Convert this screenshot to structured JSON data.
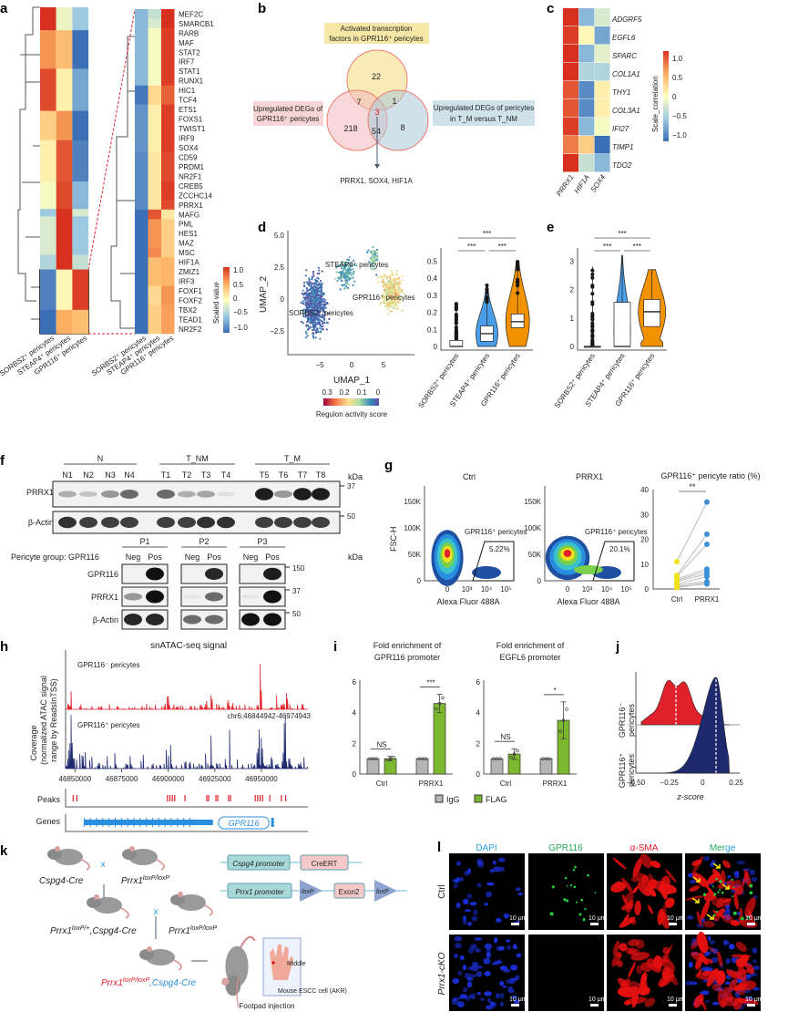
{
  "panel_labels": [
    "a",
    "b",
    "c",
    "d",
    "e",
    "f",
    "g",
    "h",
    "i",
    "j",
    "k",
    "l"
  ],
  "panel_a": {
    "overview_rows": [
      {
        "count": 25,
        "values": [
          1.0,
          -0.1,
          -0.5
        ]
      },
      {
        "count": 42,
        "values": [
          0.6,
          0.4,
          -1.0
        ]
      },
      {
        "count": 46,
        "values": [
          0.9,
          0.1,
          -0.7
        ]
      },
      {
        "count": 32,
        "values": [
          0.3,
          0.6,
          -1.0
        ]
      },
      {
        "count": 45,
        "values": [
          0.1,
          0.85,
          -0.9
        ]
      },
      {
        "count": 30,
        "values": [
          -0.05,
          0.9,
          -0.6
        ]
      },
      {
        "count": 8,
        "values": [
          -0.5,
          1.0,
          -0.2
        ]
      },
      {
        "count": 42,
        "values": [
          -0.2,
          1.0,
          -0.5
        ]
      },
      {
        "count": 16,
        "values": [
          -0.4,
          1.0,
          -0.3
        ]
      },
      {
        "count": 44,
        "values": [
          -0.9,
          0.05,
          0.95
        ]
      },
      {
        "count": 26,
        "values": [
          -1.0,
          0.5,
          0.4
        ]
      }
    ],
    "genes": [
      "MEF2C",
      "SMARCB1",
      "RARB",
      "MAF",
      "STAT2",
      "IRF7",
      "STAT1",
      "RUNX1",
      "HIC1",
      "TCF4",
      "ETS1",
      "FOXS1",
      "TWIST1",
      "IRF9",
      "SOX4",
      "CD59",
      "PRDM1",
      "NR2F1",
      "CREB5",
      "ZCCHC14",
      "PRRX1",
      "MAFG",
      "PML",
      "HES1",
      "MAZ",
      "MSC",
      "HIF1A",
      "ZMIZ1",
      "IRF3",
      "FOXF1",
      "FOXF2",
      "TBX2",
      "TEAD1",
      "NR2F2"
    ],
    "gene_values": [
      [
        -0.6,
        -0.3,
        1.0
      ],
      [
        -0.6,
        -0.2,
        1.0
      ],
      [
        -0.6,
        -0.05,
        0.95
      ],
      [
        -0.6,
        -0.05,
        0.95
      ],
      [
        -0.6,
        -0.05,
        0.95
      ],
      [
        -0.6,
        -0.05,
        0.95
      ],
      [
        -0.6,
        -0.05,
        0.95
      ],
      [
        -0.6,
        -0.05,
        0.95
      ],
      [
        -0.95,
        0.25,
        0.8
      ],
      [
        -0.95,
        0.25,
        0.8
      ],
      [
        -0.8,
        0.1,
        0.95
      ],
      [
        -0.8,
        0.1,
        0.95
      ],
      [
        -0.8,
        0.1,
        0.95
      ],
      [
        -0.8,
        0.1,
        0.95
      ],
      [
        -0.8,
        0.1,
        0.95
      ],
      [
        -0.85,
        0.15,
        0.9
      ],
      [
        -0.85,
        0.15,
        0.9
      ],
      [
        -0.85,
        0.15,
        0.9
      ],
      [
        -0.85,
        0.15,
        0.95
      ],
      [
        -0.85,
        0.15,
        0.95
      ],
      [
        -0.85,
        0.15,
        0.9
      ],
      [
        -1.0,
        0.85,
        0.15
      ],
      [
        -1.0,
        0.6,
        0.3
      ],
      [
        -1.0,
        0.6,
        0.3
      ],
      [
        -1.0,
        0.6,
        0.3
      ],
      [
        -1.0,
        0.65,
        0.3
      ],
      [
        -1.0,
        0.4,
        0.45
      ],
      [
        -1.0,
        0.4,
        0.45
      ],
      [
        -1.0,
        0.4,
        0.45
      ],
      [
        -1.0,
        0.25,
        0.6
      ],
      [
        -1.0,
        0.25,
        0.6
      ],
      [
        -1.0,
        0.3,
        0.55
      ],
      [
        -1.0,
        0.3,
        0.55
      ],
      [
        -1.0,
        0.3,
        0.55
      ]
    ],
    "columns": [
      "SORBS2⁺ pericytes",
      "STEAP4⁺ pericytes",
      "GPR116⁺ pericytes"
    ],
    "colorbar_title": "Scaled value",
    "colorbar_ticks": [
      "1.0",
      "0.5",
      "0",
      "−0.5",
      "−1.0"
    ]
  },
  "panel_b": {
    "set_top": "Activated transcription factors in GPR116⁺ pericytes",
    "set_top_lines": [
      "Activated transcription",
      "factors in GPR116⁺ pericytes"
    ],
    "set_left_lines": [
      "Upregulated DEGs of",
      "GPR116⁺ pericytes"
    ],
    "set_right_lines": [
      "Upregulated DEGs of pericytes",
      "in T_M versus T_NM"
    ],
    "counts": {
      "top_only": "22",
      "top_left": "7",
      "top_right": "1",
      "all": "3",
      "left_only": "218",
      "left_right": "54",
      "right_only": "8"
    },
    "result": "PRRX1, SOX4, HIF1A"
  },
  "panel_c": {
    "genes": [
      "ADGRF5",
      "EGFL6",
      "SPARC",
      "COL1A1",
      "THY1",
      "COL3A1",
      "IFI27",
      "TIMP1",
      "TDO2"
    ],
    "columns": [
      "PRRX1",
      "HIF1A",
      "SOX4"
    ],
    "values": [
      [
        1.0,
        -0.6,
        -0.2
      ],
      [
        0.95,
        0.05,
        -0.7
      ],
      [
        1.0,
        -0.6,
        -0.15
      ],
      [
        1.0,
        -0.4,
        -0.4
      ],
      [
        0.85,
        -0.85,
        0.1
      ],
      [
        0.85,
        -0.85,
        0.1
      ],
      [
        0.95,
        -0.6,
        -0.05
      ],
      [
        0.7,
        0.3,
        -1.0
      ],
      [
        1.0,
        -0.3,
        -0.6
      ]
    ],
    "colorbar_title": "Scale_correlation",
    "colorbar_ticks": [
      "1.0",
      "0.5",
      "0",
      "−0.5",
      "−1.0"
    ]
  },
  "panel_d": {
    "umap": {
      "xlabel": "UMAP_1",
      "ylabel": "UMAP_2",
      "xticks": [
        "−5",
        "0",
        "5"
      ],
      "yticks": [
        "5.0",
        "2.5",
        "0",
        "−2.5"
      ],
      "clusters": [
        "STEAP4⁺ pericytes",
        "GPR116⁺ pericytes",
        "SORBS2⁺ pericytes"
      ],
      "colorbar_title": "Regulon activity score",
      "colorbar_ticks": [
        "0.3",
        "0.2",
        "0.1",
        "0"
      ]
    },
    "violin": {
      "yticks": [
        "0",
        "0.1",
        "0.2",
        "0.3",
        "0.4",
        "0.5"
      ],
      "ylim": [
        0,
        0.55
      ],
      "categories": [
        "SORBS2⁺ pericytes",
        "STEAP4⁺ pericytes",
        "GPR116⁺ pericytes"
      ],
      "stats": [
        {
          "q1": 0,
          "median": 0,
          "q3": 0.035,
          "max": 0.25
        },
        {
          "q1": 0.03,
          "median": 0.075,
          "q3": 0.12,
          "max": 0.36
        },
        {
          "q1": 0.11,
          "median": 0.145,
          "q3": 0.19,
          "max": 0.5
        }
      ],
      "colors": [
        "#8fd18f",
        "#4a9ee8",
        "#f39200"
      ],
      "significance": [
        "***",
        "***",
        "***"
      ]
    }
  },
  "panel_e": {
    "yticks": [
      "0",
      "1",
      "2",
      "3"
    ],
    "ylim": [
      0,
      3.3
    ],
    "categories": [
      "SORBS2⁺ pericytes",
      "STEAP4⁺ pericytes",
      "GPR116⁺ pericytes"
    ],
    "stats": [
      {
        "q1": 0,
        "median": 0,
        "q3": 0,
        "max": 2.8
      },
      {
        "q1": 0,
        "median": 0,
        "q3": 1.55,
        "max": 3.2
      },
      {
        "q1": 0.7,
        "median": 1.22,
        "q3": 1.65,
        "max": 2.7
      }
    ],
    "colors": [
      "#222222",
      "#4a9ee8",
      "#f39200"
    ],
    "significance": [
      "***",
      "***",
      "***"
    ]
  },
  "panel_f": {
    "groups": [
      "N",
      "T_NM",
      "T_M"
    ],
    "lanes": [
      "N1",
      "N2",
      "N3",
      "N4",
      "T1",
      "T2",
      "T3",
      "T4",
      "T5",
      "T6",
      "T7",
      "T8"
    ],
    "rows": [
      {
        "label": "PRRX1",
        "kda": "37",
        "intensity": [
          0.3,
          0.2,
          0.4,
          0.6,
          0.6,
          0.3,
          0.35,
          0.08,
          0.95,
          0.4,
          0.95,
          0.95
        ]
      },
      {
        "label": "β-Actin",
        "kda": "50",
        "intensity": [
          0.85,
          0.8,
          0.8,
          0.8,
          0.8,
          0.8,
          0.85,
          0.85,
          0.8,
          0.8,
          0.8,
          0.8
        ]
      }
    ],
    "kda_label": "kDa",
    "lower": {
      "group_label": "Pericyte group: GPR116",
      "patients": [
        "P1",
        "P2",
        "P3"
      ],
      "lane_labels": [
        "Neg",
        "Pos"
      ],
      "rows": [
        {
          "label": "GPR116",
          "kda": "150",
          "intensity": [
            [
              0,
              1
            ],
            [
              0,
              0.9
            ],
            [
              0,
              0.95
            ]
          ]
        },
        {
          "label": "PRRX1",
          "kda": "37",
          "intensity": [
            [
              0.4,
              1
            ],
            [
              0.05,
              0.6
            ],
            [
              0.05,
              1
            ]
          ]
        },
        {
          "label": "β-Actin",
          "kda": "50",
          "intensity": [
            [
              0.9,
              0.9
            ],
            [
              0.6,
              0.6
            ],
            [
              1,
              1
            ]
          ]
        }
      ]
    }
  },
  "panel_g": {
    "plots": [
      {
        "title": "Ctrl",
        "gate_label": "GPR116⁺ pericytes",
        "percent": "5.22%"
      },
      {
        "title": "PRRX1",
        "gate_label": "GPR116⁺ pericytes",
        "percent": "20.1%"
      }
    ],
    "ylabel": "FSC-H",
    "xlabel": "Alexa Fluor 488A",
    "yticks": [
      "0",
      "50K",
      "100K",
      "150K"
    ],
    "xticks": [
      "0",
      "10³",
      "10⁴",
      "10⁵"
    ],
    "ratio": {
      "title": "GPR116⁺ pericyte ratio (%)",
      "yticks": [
        "0",
        "10",
        "20",
        "30",
        "40"
      ],
      "ylim": [
        0,
        40
      ],
      "categories": [
        "Ctrl",
        "PRRX1"
      ],
      "significance": "**",
      "pairs": [
        [
          11,
          35
        ],
        [
          5.5,
          22
        ],
        [
          5,
          18
        ],
        [
          4,
          8
        ],
        [
          3.5,
          7
        ],
        [
          3,
          6
        ],
        [
          2,
          5
        ],
        [
          1.5,
          3
        ],
        [
          1,
          2
        ],
        [
          0.5,
          2.5
        ]
      ],
      "colors": [
        "#f2e11d",
        "#3b8fd9"
      ]
    }
  },
  "panel_h": {
    "title": "snATAC-seq signal",
    "ylabel_lines": [
      "Coverage",
      "(normalized ATAC signal",
      "range by ReadsInTSS)"
    ],
    "tracks": [
      {
        "label": "GPR116⁻ pericytes",
        "color": "#e0202a"
      },
      {
        "label": "GPR116⁺ pericytes",
        "color": "#1f2a6e"
      }
    ],
    "region": "chr6:46844942-46974943",
    "xrange": [
      46844942,
      46974943
    ],
    "xticks": [
      "46850000",
      "46875000",
      "46900000",
      "46925000",
      "46950000"
    ],
    "peaks_label": "Peaks",
    "peaks": [
      46849000,
      46851000,
      46899600,
      46900900,
      46902200,
      46903500,
      46909000,
      46920700,
      46921700,
      46925600,
      46926600,
      46932400,
      46933400,
      46946700,
      46948000,
      46949300,
      46950600,
      46954500,
      46960700,
      46963000
    ],
    "genes_label": "Genes",
    "gene": {
      "name": "GPR116",
      "start": 46854900,
      "end": 46956200
    }
  },
  "panel_i": {
    "plots": [
      {
        "title_lines": [
          "Fold enrichment of",
          "GPR116 promoter"
        ],
        "values": {
          "IgG": [
            1,
            1
          ],
          "FLAG": [
            1.0,
            4.6
          ]
        },
        "errors": [
          0.15,
          0.6
        ],
        "significance": [
          "NS",
          "***"
        ]
      },
      {
        "title_lines": [
          "Fold enrichment of",
          "EGFL6 promoter"
        ],
        "values": {
          "IgG": [
            1,
            1
          ],
          "FLAG": [
            1.3,
            3.5
          ]
        },
        "errors": [
          0.35,
          1.2
        ],
        "significance": [
          "NS",
          "*"
        ]
      }
    ],
    "categories": [
      "Ctrl",
      "PRRX1"
    ],
    "yticks": [
      "0",
      "2",
      "4",
      "6"
    ],
    "ylim": [
      0,
      6
    ],
    "legend": [
      {
        "label": "IgG",
        "color": "#b5b5b5"
      },
      {
        "label": "FLAG",
        "color": "#7cb82f"
      }
    ]
  },
  "panel_j": {
    "rows": [
      "GPR116⁻ pericytes",
      "GPR116⁺ pericytes"
    ],
    "row_lines": [
      [
        "GPR116⁻",
        "pericytes"
      ],
      [
        "GPR116⁺",
        "pericytes"
      ]
    ],
    "means": [
      -0.2,
      0.1
    ],
    "colors": [
      "#e0202a",
      "#1f2a6e"
    ],
    "xlabel": "z-score",
    "xticks": [
      "−0.50",
      "−0.25",
      "0",
      "0.25"
    ],
    "xlim": [
      -0.5,
      0.25
    ]
  },
  "panel_k": {
    "crosses": [
      "x",
      "x"
    ],
    "mice": [
      "Cspg4-Cre",
      "Prrx1",
      "loxP/loxP",
      "Prrx1",
      "loxP/+",
      ",Cspg4-Cre",
      "Prrx1",
      "loxP/loxP"
    ],
    "offspring": {
      "gene": "Prrx1",
      "sup": "loxP/loxP",
      "driver": ",Cspg4-Cre"
    },
    "construct1": [
      "Cspg4 promoter",
      "CreERT"
    ],
    "construct2": [
      "Prrx1 promoter",
      "loxP",
      "Exon2",
      "loxP"
    ],
    "injection": {
      "site": "Middle",
      "cells": "Mouse ESCC cell (AKR)",
      "label": "Footpad injection"
    }
  },
  "panel_l": {
    "channels": [
      {
        "label": "DAPI",
        "color": "#2aa0e6"
      },
      {
        "label": "GPR116",
        "color": "#22a85a"
      },
      {
        "label": "α-SMA",
        "color": "#e8202a"
      },
      {
        "label": "Merge",
        "color": "#22a85a"
      }
    ],
    "merge_parts": [
      "Mer",
      "ge"
    ],
    "rows": [
      "Ctrl",
      "Prrx1-cKO"
    ],
    "scale_bar": "10 μm"
  }
}
